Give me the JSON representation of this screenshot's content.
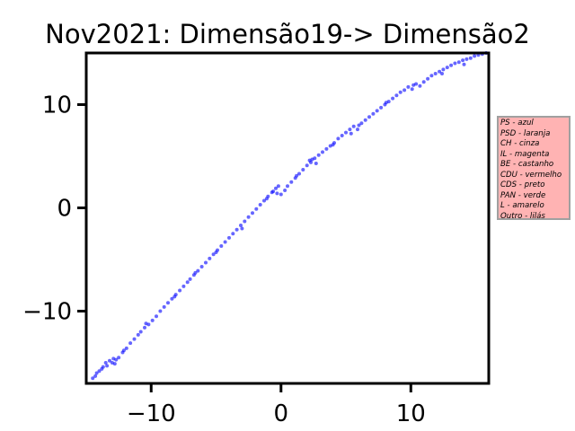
{
  "chart_data": {
    "type": "scatter",
    "title": "Nov2021: Dimensão19-> Dimensão2",
    "xlabel": "",
    "ylabel": "",
    "xlim": [
      -15,
      16
    ],
    "ylim": [
      -17,
      15
    ],
    "xticks": [
      {
        "value": -10,
        "label": "−10"
      },
      {
        "value": 0,
        "label": "0"
      },
      {
        "value": 10,
        "label": "10"
      }
    ],
    "yticks": [
      {
        "value": 10,
        "label": "10"
      },
      {
        "value": 0,
        "label": "0"
      },
      {
        "value": -10,
        "label": "−10"
      }
    ],
    "grid": false,
    "point_color": "#0000ff",
    "legend_placement": "outside-right",
    "legend_facecolor": "#ffb3b3",
    "legend_lines": [
      "PS - azul",
      "PSD - laranja",
      "CH - cinza",
      "IL - magenta",
      "BE - castanho",
      "CDU - vermelho",
      "CDS - preto",
      "PAN - verde",
      "L - amarelo",
      "Outro - lilás"
    ],
    "series": [
      {
        "points": [
          [
            -14.5,
            -16.5
          ],
          [
            -14.3,
            -16.3
          ],
          [
            -14.0,
            -15.8
          ],
          [
            -13.7,
            -15.4
          ],
          [
            -13.5,
            -15.0
          ],
          [
            -13.2,
            -14.8
          ],
          [
            -12.9,
            -14.6
          ],
          [
            -13.4,
            -15.3
          ],
          [
            -13.0,
            -15.0
          ],
          [
            -12.7,
            -14.7
          ],
          [
            -12.8,
            -15.1
          ],
          [
            -12.5,
            -14.5
          ],
          [
            -12.2,
            -14.0
          ],
          [
            -11.9,
            -13.6
          ],
          [
            -11.6,
            -13.1
          ],
          [
            -11.3,
            -12.7
          ],
          [
            -11.0,
            -12.3
          ],
          [
            -10.8,
            -12.0
          ],
          [
            -10.5,
            -11.6
          ],
          [
            -10.2,
            -11.3
          ],
          [
            -9.9,
            -10.9
          ],
          [
            -9.6,
            -10.5
          ],
          [
            -9.3,
            -10.0
          ],
          [
            -9.0,
            -9.6
          ],
          [
            -8.7,
            -9.2
          ],
          [
            -8.4,
            -8.8
          ],
          [
            -8.1,
            -8.4
          ],
          [
            -7.8,
            -8.0
          ],
          [
            -7.5,
            -7.6
          ],
          [
            -7.2,
            -7.2
          ],
          [
            -7.0,
            -6.9
          ],
          [
            -6.7,
            -6.5
          ],
          [
            -6.4,
            -6.1
          ],
          [
            -6.1,
            -5.7
          ],
          [
            -5.8,
            -5.3
          ],
          [
            -5.5,
            -4.9
          ],
          [
            -5.2,
            -4.5
          ],
          [
            -4.9,
            -4.1
          ],
          [
            -4.6,
            -3.7
          ],
          [
            -4.3,
            -3.3
          ],
          [
            -4.0,
            -2.9
          ],
          [
            -3.7,
            -2.5
          ],
          [
            -3.4,
            -2.1
          ],
          [
            -3.1,
            -1.7
          ],
          [
            -2.8,
            -1.3
          ],
          [
            -2.5,
            -0.9
          ],
          [
            -2.2,
            -0.5
          ],
          [
            -1.9,
            -0.1
          ],
          [
            -1.6,
            0.3
          ],
          [
            -1.3,
            0.7
          ],
          [
            -1.0,
            1.1
          ],
          [
            -0.7,
            1.5
          ],
          [
            -0.4,
            1.9
          ],
          [
            -0.2,
            2.1
          ],
          [
            -0.6,
            1.6
          ],
          [
            0.0,
            1.3
          ],
          [
            0.3,
            1.7
          ],
          [
            0.5,
            2.1
          ],
          [
            0.8,
            2.5
          ],
          [
            1.1,
            2.9
          ],
          [
            1.4,
            3.3
          ],
          [
            1.7,
            3.7
          ],
          [
            2.0,
            4.1
          ],
          [
            2.3,
            4.4
          ],
          [
            2.6,
            4.8
          ],
          [
            2.9,
            5.1
          ],
          [
            2.2,
            4.6
          ],
          [
            2.7,
            4.3
          ],
          [
            3.2,
            5.4
          ],
          [
            3.5,
            5.7
          ],
          [
            3.8,
            6.0
          ],
          [
            4.1,
            6.3
          ],
          [
            4.4,
            6.7
          ],
          [
            4.7,
            7.0
          ],
          [
            5.0,
            7.3
          ],
          [
            5.3,
            7.6
          ],
          [
            5.6,
            7.9
          ],
          [
            5.9,
            7.6
          ],
          [
            5.4,
            7.2
          ],
          [
            6.2,
            8.2
          ],
          [
            6.5,
            8.5
          ],
          [
            6.8,
            8.8
          ],
          [
            7.1,
            9.1
          ],
          [
            7.4,
            9.4
          ],
          [
            7.7,
            9.7
          ],
          [
            8.0,
            10.0
          ],
          [
            8.3,
            10.3
          ],
          [
            8.6,
            10.6
          ],
          [
            8.9,
            10.9
          ],
          [
            9.2,
            11.2
          ],
          [
            9.5,
            11.4
          ],
          [
            9.8,
            11.7
          ],
          [
            10.1,
            11.5
          ],
          [
            10.4,
            12.0
          ],
          [
            10.7,
            11.8
          ],
          [
            11.0,
            12.2
          ],
          [
            11.3,
            12.5
          ],
          [
            11.6,
            12.8
          ],
          [
            11.9,
            13.0
          ],
          [
            12.2,
            13.2
          ],
          [
            12.5,
            13.4
          ],
          [
            12.8,
            13.6
          ],
          [
            13.1,
            13.8
          ],
          [
            13.4,
            14.0
          ],
          [
            13.7,
            14.1
          ],
          [
            14.0,
            14.3
          ],
          [
            14.3,
            14.4
          ],
          [
            14.6,
            14.5
          ],
          [
            14.9,
            14.7
          ],
          [
            15.2,
            14.8
          ],
          [
            15.5,
            14.9
          ],
          [
            15.8,
            15.0
          ],
          [
            14.1,
            13.9
          ],
          [
            12.4,
            13.0
          ],
          [
            10.2,
            11.9
          ],
          [
            8.1,
            10.2
          ],
          [
            6.0,
            8.0
          ],
          [
            4.0,
            6.1
          ],
          [
            -3.0,
            -2.0
          ],
          [
            -8.2,
            -8.6
          ],
          [
            -10.4,
            -11.2
          ],
          [
            -12.1,
            -13.8
          ],
          [
            -13.8,
            -15.6
          ],
          [
            -14.2,
            -16.0
          ],
          [
            -5.0,
            -4.3
          ],
          [
            -6.6,
            -6.3
          ],
          [
            1.2,
            3.1
          ],
          [
            2.4,
            4.7
          ],
          [
            -1.1,
            0.9
          ],
          [
            -0.3,
            1.4
          ]
        ]
      }
    ]
  }
}
